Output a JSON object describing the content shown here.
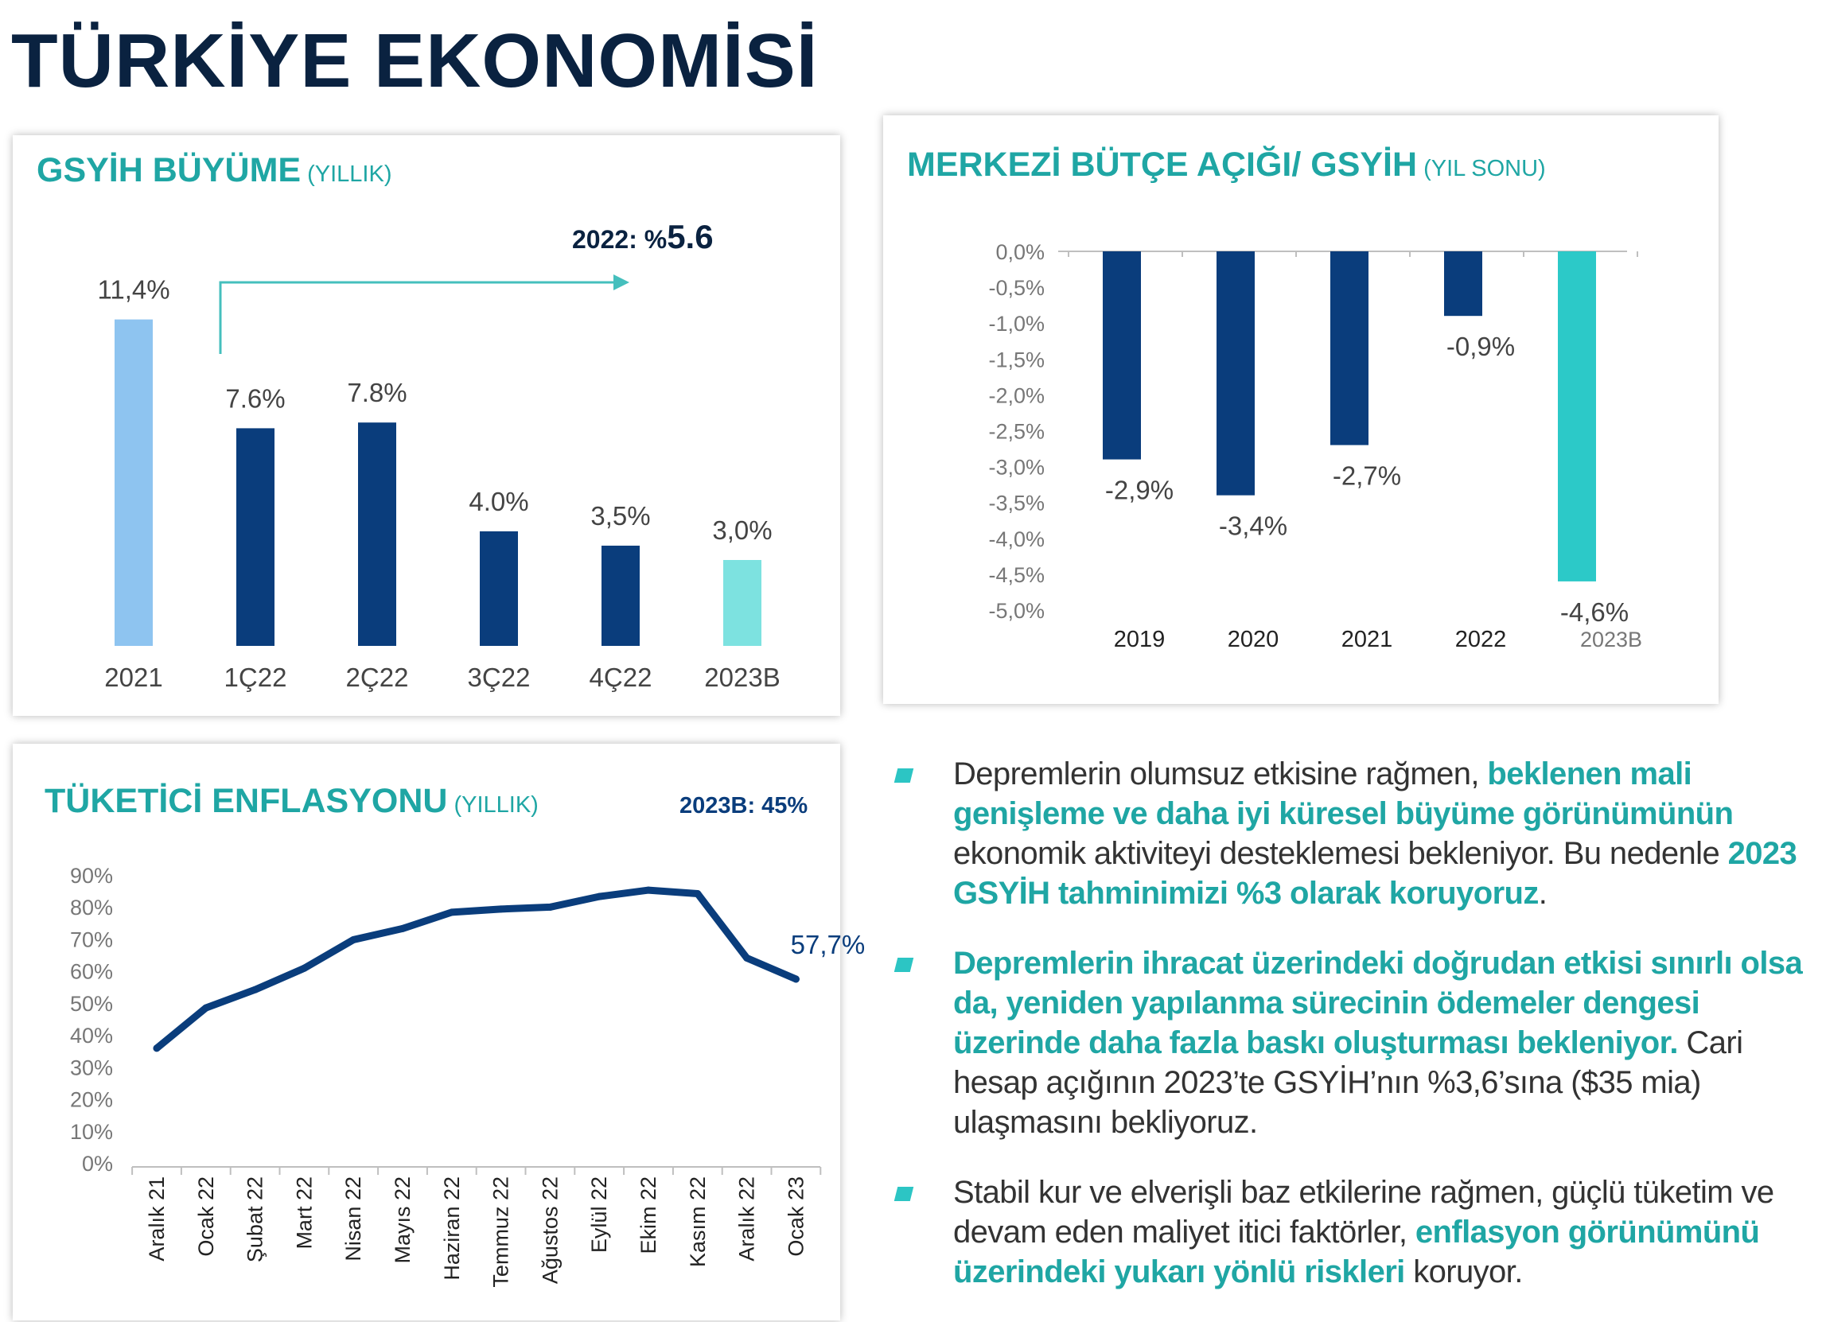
{
  "page_title": "TÜRKİYE EKONOMİSİ",
  "colors": {
    "navy": "#0a3d7c",
    "teal_title": "#1fa6a4",
    "light_blue": "#8ec4f0",
    "light_teal": "#7de2e0",
    "turquoise": "#2cc9c8"
  },
  "gdp": {
    "title": "GSYİH BÜYÜME",
    "subtitle": "(YILLIK)",
    "annotation_prefix": "2022: %",
    "annotation_value": "5.6"
  },
  "budget": {
    "title": "MERKEZİ BÜTÇE AÇIĞI/ GSYİH",
    "subtitle": "(YIL SONU)"
  },
  "cpi": {
    "title": "TÜKETİCİ ENFLASYONU",
    "subtitle": "(YILLIK)",
    "forecast": "2023B: 45%"
  },
  "chart_data": [
    {
      "type": "bar",
      "title": "GSYİH BÜYÜME (YILLIK)",
      "categories": [
        "2021",
        "1Ç22",
        "2Ç22",
        "3Ç22",
        "4Ç22",
        "2023B"
      ],
      "values": [
        11.4,
        7.6,
        7.8,
        4.0,
        3.5,
        3.0
      ],
      "data_labels": [
        "11,4%",
        "7.6%",
        "7.8%",
        "4.0%",
        "3,5%",
        "3,0%"
      ],
      "bar_colors": [
        "#8ec4f0",
        "#0a3d7c",
        "#0a3d7c",
        "#0a3d7c",
        "#0a3d7c",
        "#7de2e0"
      ],
      "ylim": [
        0,
        13
      ],
      "grid": false,
      "annotation": "2022: %5.6"
    },
    {
      "type": "bar",
      "title": "MERKEZİ BÜTÇE AÇIĞI/ GSYİH (YIL SONU)",
      "categories": [
        "2019",
        "2020",
        "2021",
        "2022",
        "2023B"
      ],
      "values": [
        -2.9,
        -3.4,
        -2.7,
        -0.9,
        -4.6
      ],
      "data_labels": [
        "-2,9%",
        "-3,4%",
        "-2,7%",
        "-0,9%",
        "-4,6%"
      ],
      "bar_colors": [
        "#0a3d7c",
        "#0a3d7c",
        "#0a3d7c",
        "#0a3d7c",
        "#2cc9c8"
      ],
      "ylim": [
        -5.0,
        0.0
      ],
      "yticks": [
        "0,0%",
        "-0,5%",
        "-1,0%",
        "-1,5%",
        "-2,0%",
        "-2,5%",
        "-3,0%",
        "-3,5%",
        "-4,0%",
        "-4,5%",
        "-5,0%"
      ],
      "grid": false
    },
    {
      "type": "line",
      "title": "TÜKETİCİ ENFLASYONU (YILLIK)",
      "categories": [
        "Aralık 21",
        "Ocak 22",
        "Şubat 22",
        "Mart 22",
        "Nisan 22",
        "Mayıs 22",
        "Haziran 22",
        "Temmuz 22",
        "Ağustos 22",
        "Eylül 22",
        "Ekim 22",
        "Kasım 22",
        "Aralık 22",
        "Ocak 23"
      ],
      "values": [
        36.1,
        48.7,
        54.4,
        61.1,
        70.0,
        73.5,
        78.6,
        79.6,
        80.2,
        83.5,
        85.5,
        84.4,
        64.3,
        57.7
      ],
      "end_label": "57,7%",
      "ylim": [
        0,
        90
      ],
      "yticks": [
        "0%",
        "10%",
        "20%",
        "30%",
        "40%",
        "50%",
        "60%",
        "70%",
        "80%",
        "90%"
      ],
      "line_color": "#0a3d7c",
      "grid": false
    }
  ],
  "bullets": [
    [
      {
        "text": "Depremlerin olumsuz etkisine rağmen, ",
        "hl": false
      },
      {
        "text": "beklenen mali genişleme ve daha iyi küresel büyüme görünümünün",
        "hl": true
      },
      {
        "text": " ekonomik aktiviteyi desteklemesi bekleniyor. Bu nedenle ",
        "hl": false
      },
      {
        "text": "2023 GSYİH tahminimizi %3 olarak koruyoruz",
        "hl": true
      },
      {
        "text": ".",
        "hl": false
      }
    ],
    [
      {
        "text": "Depremlerin ihracat üzerindeki doğrudan etkisi sınırlı olsa da, yeniden yapılanma sürecinin ödemeler dengesi üzerinde daha fazla baskı oluşturması bekleniyor.",
        "hl": true
      },
      {
        "text": " Cari hesap açığının 2023’te GSYİH’nın %3,6’sına ($35 mia) ulaşmasını bekliyoruz.",
        "hl": false
      }
    ],
    [
      {
        "text": "Stabil kur ve elverişli baz etkilerine rağmen, güçlü tüketim ve devam eden maliyet itici faktörler, ",
        "hl": false
      },
      {
        "text": "enflasyon görünümünü üzerindeki yukarı yönlü riskleri",
        "hl": true
      },
      {
        "text": " koruyor.",
        "hl": false
      }
    ]
  ]
}
